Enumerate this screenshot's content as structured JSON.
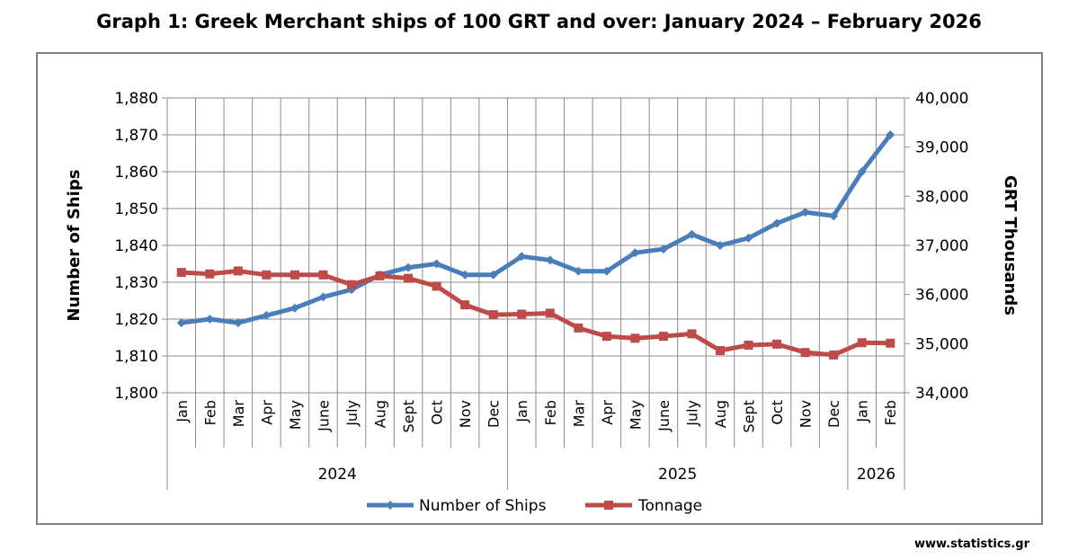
{
  "title": "Graph 1: Greek Merchant ships of 100 GRT and over: January 2024 – February 2026",
  "source": "www.statistics.gr",
  "chart_data": {
    "type": "line",
    "categories": [
      "Jan",
      "Feb",
      "Mar",
      "Apr",
      "May",
      "June",
      "July",
      "Aug",
      "Sept",
      "Oct",
      "Nov",
      "Dec",
      "Jan",
      "Feb",
      "Mar",
      "Apr",
      "May",
      "June",
      "July",
      "Aug",
      "Sept",
      "Oct",
      "Nov",
      "Dec",
      "Jan",
      "Feb"
    ],
    "year_groups": [
      {
        "label": "2024",
        "count": 12
      },
      {
        "label": "2025",
        "count": 12
      },
      {
        "label": "2026",
        "count": 2
      }
    ],
    "y_left": {
      "label": "Number of Ships",
      "range": [
        1800,
        1880
      ],
      "ticks": [
        "1,800",
        "1,810",
        "1,820",
        "1,830",
        "1,840",
        "1,850",
        "1,860",
        "1,870",
        "1,880"
      ]
    },
    "y_right": {
      "label": "GRT Thousands",
      "range": [
        34000,
        40000
      ],
      "ticks": [
        "34,000",
        "35,000",
        "36,000",
        "37,000",
        "38,000",
        "39,000",
        "40,000"
      ]
    },
    "series": [
      {
        "name": "Number of Ships",
        "axis": "left",
        "color": "#4a7ebb",
        "marker": "diamond",
        "values": [
          1819,
          1820,
          1819,
          1821,
          1823,
          1826,
          1828,
          1832,
          1834,
          1835,
          1832,
          1832,
          1837,
          1836,
          1833,
          1833,
          1838,
          1839,
          1843,
          1840,
          1842,
          1846,
          1849,
          1848,
          1860,
          1870
        ]
      },
      {
        "name": "Tonnage",
        "axis": "right",
        "color": "#be4b48",
        "marker": "square",
        "values": [
          36450,
          36420,
          36480,
          36400,
          36400,
          36400,
          36200,
          36380,
          36330,
          36170,
          35790,
          35590,
          35600,
          35620,
          35320,
          35150,
          35110,
          35150,
          35200,
          34860,
          34970,
          34990,
          34820,
          34770,
          35020,
          35010
        ]
      }
    ],
    "grid": true,
    "legend": "bottom"
  }
}
